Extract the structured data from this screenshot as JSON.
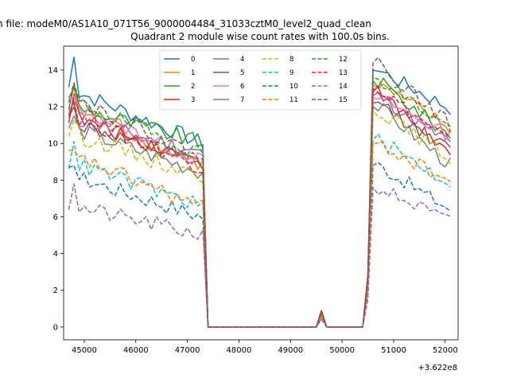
{
  "chart_data": {
    "type": "line",
    "suptitle": "n file: modeM0/AS1A10_071T56_9000004484_31033cztM0_level2_quad_clean",
    "title": "Quadrant 2 module wise count rates with 100.0s bins.",
    "xlabel": "",
    "ylabel": "",
    "x_offset_label": "+3.622e8",
    "xlim": [
      44600,
      52250
    ],
    "ylim": [
      -0.7,
      15.3
    ],
    "xticks": [
      45000,
      46000,
      47000,
      48000,
      49000,
      50000,
      51000,
      52000
    ],
    "yticks": [
      0,
      2,
      4,
      6,
      8,
      10,
      12,
      14
    ],
    "grid": false,
    "legend_position": "top-center",
    "legend_columns": 4,
    "x_start": 44700,
    "x_step": 100,
    "segments": [
      {
        "from": 0,
        "to": 26,
        "kind": "pre"
      },
      {
        "from": 27,
        "to": 48,
        "kind": "zero"
      },
      {
        "from": 49,
        "to": 49,
        "kind": "bump"
      },
      {
        "from": 50,
        "to": 57,
        "kind": "zero"
      },
      {
        "from": 58,
        "to": 59,
        "kind": "ramp"
      },
      {
        "from": 60,
        "to": 74,
        "kind": "post"
      }
    ],
    "series": [
      {
        "name": "0",
        "color": "#1f77b4",
        "dash": "solid",
        "start": 13.0,
        "end": 10.0,
        "post_start": 14.0,
        "post_end": 11.9,
        "peak": 14.7,
        "bump": 0.9
      },
      {
        "name": "1",
        "color": "#ff7f0e",
        "dash": "solid",
        "start": 12.0,
        "end": 8.8,
        "post_start": 13.2,
        "post_end": 10.8,
        "peak": 13.1,
        "bump": 0.8
      },
      {
        "name": "2",
        "color": "#2ca02c",
        "dash": "solid",
        "start": 12.1,
        "end": 10.0,
        "post_start": 13.4,
        "post_end": 10.4,
        "peak": 13.2,
        "bump": 0.8
      },
      {
        "name": "3",
        "color": "#d62728",
        "dash": "solid",
        "start": 11.5,
        "end": 9.0,
        "post_start": 12.8,
        "post_end": 9.4,
        "peak": 12.7,
        "bump": 0.8
      },
      {
        "name": "4",
        "color": "#9467bd",
        "dash": "solid",
        "start": 11.4,
        "end": 9.5,
        "post_start": 12.6,
        "post_end": 10.0,
        "peak": 12.2,
        "bump": 0.8
      },
      {
        "name": "5",
        "color": "#8c564b",
        "dash": "solid",
        "start": 11.2,
        "end": 8.8,
        "post_start": 12.2,
        "post_end": 9.6,
        "peak": 12.0,
        "bump": 0.8
      },
      {
        "name": "6",
        "color": "#e377c2",
        "dash": "solid",
        "start": 12.2,
        "end": 9.0,
        "post_start": 12.5,
        "post_end": 10.4,
        "peak": 12.6,
        "bump": 0.8
      },
      {
        "name": "7",
        "color": "#7f7f7f",
        "dash": "solid",
        "start": 10.9,
        "end": 8.4,
        "post_start": 12.0,
        "post_end": 8.8,
        "peak": 11.5,
        "bump": 0.7
      },
      {
        "name": "8",
        "color": "#bcbd22",
        "dash": "dashed",
        "start": 10.6,
        "end": 8.2,
        "post_start": 11.8,
        "post_end": 9.2,
        "peak": 11.3,
        "bump": 0.7
      },
      {
        "name": "9",
        "color": "#17becf",
        "dash": "dashed",
        "start": 9.0,
        "end": 6.6,
        "post_start": 10.2,
        "post_end": 7.8,
        "peak": 10.1,
        "bump": 0.6
      },
      {
        "name": "10",
        "color": "#1f77b4",
        "dash": "dashed",
        "start": 8.3,
        "end": 6.0,
        "post_start": 8.8,
        "post_end": 6.4,
        "peak": 8.8,
        "bump": 0.5
      },
      {
        "name": "11",
        "color": "#ff7f0e",
        "dash": "dashed",
        "start": 9.4,
        "end": 6.5,
        "post_start": 10.0,
        "post_end": 7.9,
        "peak": 9.6,
        "bump": 0.6
      },
      {
        "name": "12",
        "color": "#2ca02c",
        "dash": "dashed",
        "start": 12.4,
        "end": 9.4,
        "post_start": 13.6,
        "post_end": 10.8,
        "peak": 13.0,
        "bump": 0.9
      },
      {
        "name": "13",
        "color": "#d62728",
        "dash": "dashed",
        "start": 11.6,
        "end": 8.7,
        "post_start": 13.0,
        "post_end": 10.1,
        "peak": 12.4,
        "bump": 0.8
      },
      {
        "name": "14",
        "color": "#9467bd",
        "dash": "dashed",
        "start": 6.6,
        "end": 5.0,
        "post_start": 7.6,
        "post_end": 5.7,
        "peak": 7.8,
        "bump": 0.4
      },
      {
        "name": "15",
        "color": "#8c564b",
        "dash": "dashed",
        "start": 12.6,
        "end": 9.2,
        "post_start": 14.4,
        "post_end": 11.0,
        "peak": 13.3,
        "bump": 0.9
      }
    ]
  }
}
